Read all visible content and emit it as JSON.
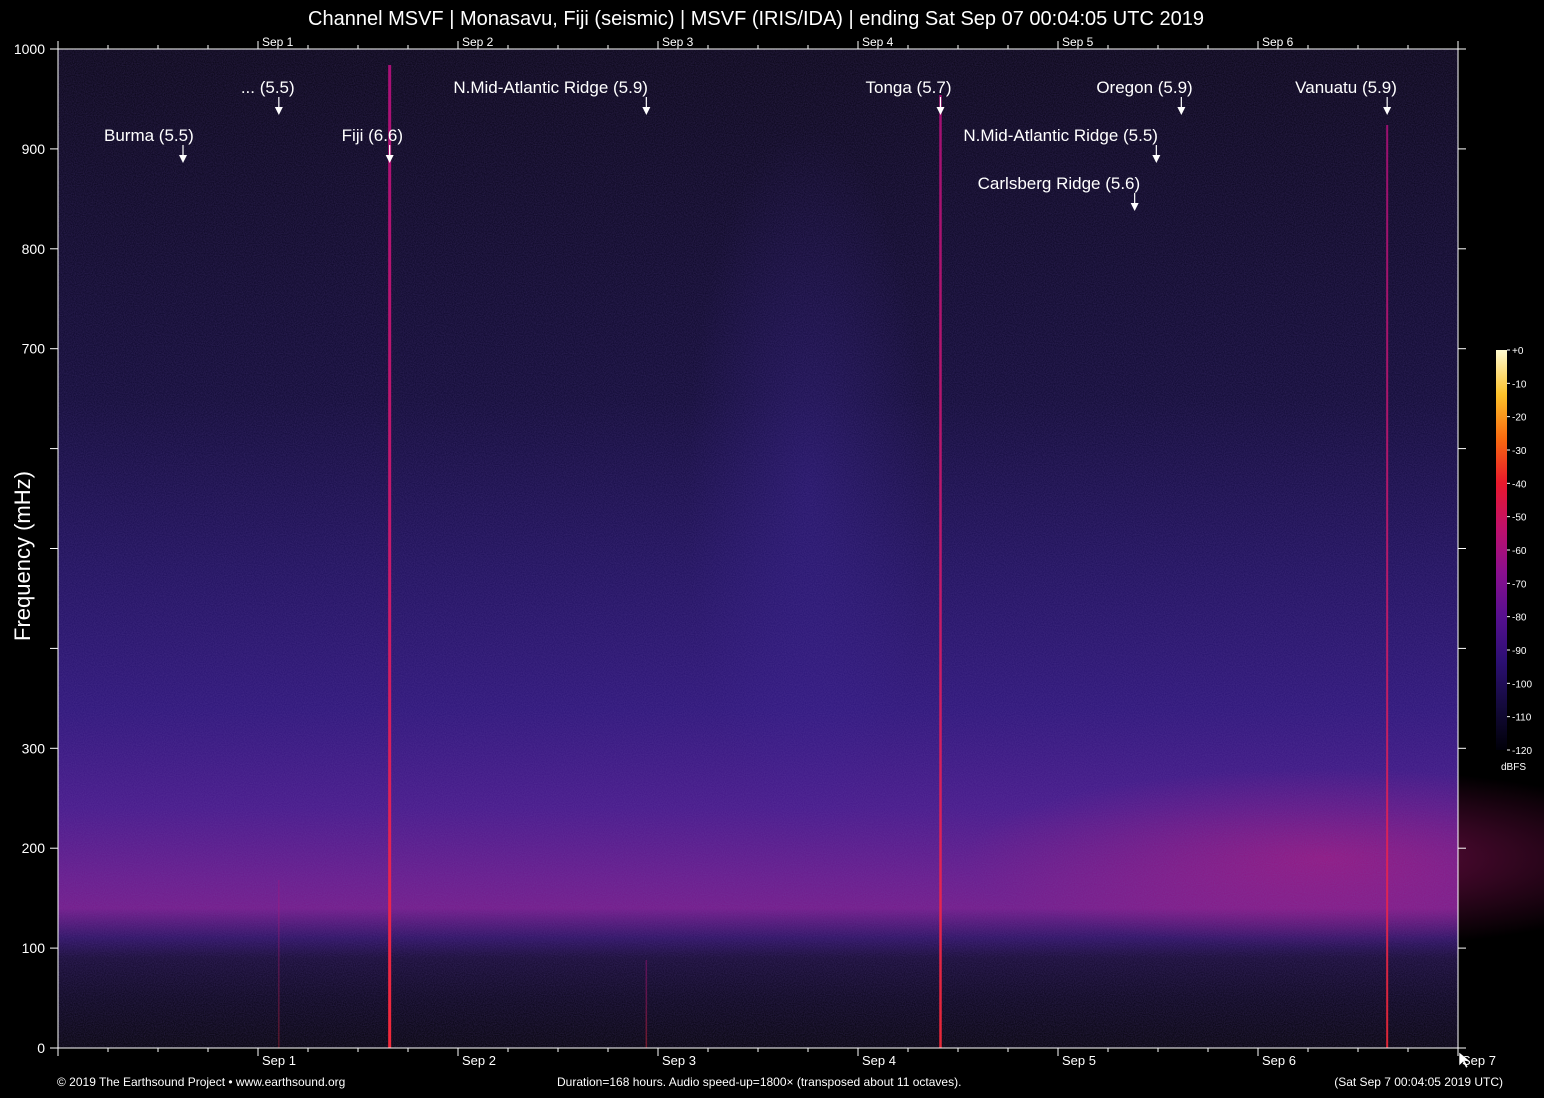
{
  "title": "Channel MSVF | Monasavu, Fiji (seismic) | MSVF (IRIS/IDA) | ending Sat Sep 07 00:04:05 UTC 2019",
  "footer": {
    "left": "© 2019 The Earthsound Project • www.earthsound.org",
    "center": "Duration=168 hours. Audio speed-up=1800× (transposed about 11 octaves).",
    "right": "(Sat Sep  7 00:04:05 2019 UTC)"
  },
  "colorbar": {
    "unit": "dBFS",
    "ticks": [
      "+0",
      "-10",
      "-20",
      "-30",
      "-40",
      "-50",
      "-60",
      "-70",
      "-80",
      "-90",
      "-100",
      "-110",
      "-120"
    ],
    "colors": [
      "#000008",
      "#140a3c",
      "#2c0f73",
      "#560f8f",
      "#8a0f8e",
      "#c0106a",
      "#e8182c",
      "#f86a10",
      "#fdc22a",
      "#fffbd0"
    ]
  },
  "chart_data": {
    "type": "heatmap",
    "title": "Channel MSVF | Monasavu, Fiji (seismic) | MSVF (IRIS/IDA) | ending Sat Sep 07 00:04:05 UTC 2019",
    "ylabel": "Frequency (mHz)",
    "xlabel": "",
    "ylim": [
      0,
      1000
    ],
    "y_ticks_labeled": [
      "1000",
      "900",
      "800",
      "700",
      "",
      "",
      "",
      "300",
      "200",
      "100",
      "0"
    ],
    "xlim_hours": [
      0,
      168
    ],
    "x_ticks": [
      {
        "label": "Sep 1",
        "hour": 24
      },
      {
        "label": "Sep 2",
        "hour": 48
      },
      {
        "label": "Sep 3",
        "hour": 72
      },
      {
        "label": "Sep 4",
        "hour": 96
      },
      {
        "label": "Sep 5",
        "hour": 120
      },
      {
        "label": "Sep 6",
        "hour": 144
      },
      {
        "label": "Sep 7",
        "hour": 168
      }
    ],
    "background_energy_band_mhz": [
      120,
      300
    ],
    "events": [
      {
        "label": "Burma (5.5)",
        "hour": 15.0
      },
      {
        "label": "... (5.5)",
        "hour": 26.5
      },
      {
        "label": "Fiji (6.6)",
        "hour": 39.8
      },
      {
        "label": "N.Mid-Atlantic Ridge (5.9)",
        "hour": 70.6
      },
      {
        "label": "Tonga (5.7)",
        "hour": 105.9
      },
      {
        "label": "N.Mid-Atlantic Ridge (5.5)",
        "hour": 131.8
      },
      {
        "label": "Carlsberg Ridge (5.6)",
        "hour": 129.2
      },
      {
        "label": "Oregon (5.9)",
        "hour": 134.8
      },
      {
        "label": "Vanuatu (5.9)",
        "hour": 159.5
      }
    ]
  }
}
